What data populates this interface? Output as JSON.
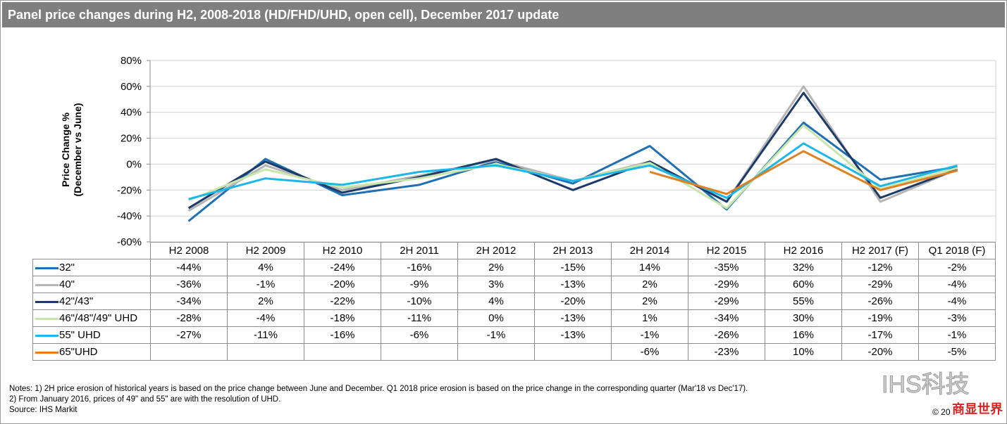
{
  "title": "Panel price changes during H2, 2008-2018 (HD/FHD/UHD, open cell), December 2017 update",
  "chart_data": {
    "type": "line",
    "title": "Panel price changes during H2, 2008-2018 (HD/FHD/UHD, open cell), December 2017 update",
    "ylabel": "Price Change % (December vs June)",
    "ylabel_lines": [
      "Price Change %",
      "(December vs June)"
    ],
    "ylim": [
      -60,
      80
    ],
    "yticks": [
      80,
      60,
      40,
      20,
      0,
      -20,
      -40,
      -60
    ],
    "ytick_labels": [
      "80%",
      "60%",
      "40%",
      "20%",
      "0%",
      "-20%",
      "-40%",
      "-60%"
    ],
    "grid": true,
    "legend": "table-bottom",
    "categories": [
      "H2 2008",
      "H2 2009",
      "H2 2010",
      "2H 2011",
      "2H 2012",
      "2H 2013",
      "2H 2014",
      "H2 2015",
      "H2 2016",
      "H2 2017 (F)",
      "Q1 2018 (F)"
    ],
    "series": [
      {
        "name": "32\"",
        "color": "#1f6fb4",
        "values": [
          -44,
          4,
          -24,
          -16,
          2,
          -15,
          14,
          -35,
          32,
          -12,
          -2
        ]
      },
      {
        "name": "40\"",
        "color": "#b5b5b5",
        "values": [
          -36,
          -1,
          -20,
          -9,
          3,
          -13,
          2,
          -29,
          60,
          -29,
          -4
        ]
      },
      {
        "name": "42\"/43\"",
        "color": "#1c3a68",
        "values": [
          -34,
          2,
          -22,
          -10,
          4,
          -20,
          2,
          -29,
          55,
          -26,
          -4
        ]
      },
      {
        "name": "46\"/48\"/49\" UHD",
        "color": "#c8e6aa",
        "values": [
          -28,
          -4,
          -18,
          -11,
          0,
          -13,
          1,
          -34,
          30,
          -19,
          -3
        ]
      },
      {
        "name": "55\" UHD",
        "color": "#1bb6ea",
        "values": [
          -27,
          -11,
          -16,
          -6,
          -1,
          -13,
          -1,
          -26,
          16,
          -17,
          -1
        ]
      },
      {
        "name": "65\"UHD",
        "color": "#e0801f",
        "values": [
          null,
          null,
          null,
          null,
          null,
          null,
          -6,
          -23,
          10,
          -20,
          -5
        ]
      }
    ]
  },
  "notes": [
    "Notes: 1) 2H  price erosion of historical years is based on the price change between  June and December.  Q1 2018 price erosion is based on the price change in the corresponding quarter (Mar'18 vs Dec'17).",
    "2) From January 2016, prices of 49\" and 55\" are with the resolution of UHD.",
    "Source: IHS Markit"
  ],
  "copyright": "© 20",
  "watermark": "IHS科技",
  "watermark2": "商显世界"
}
